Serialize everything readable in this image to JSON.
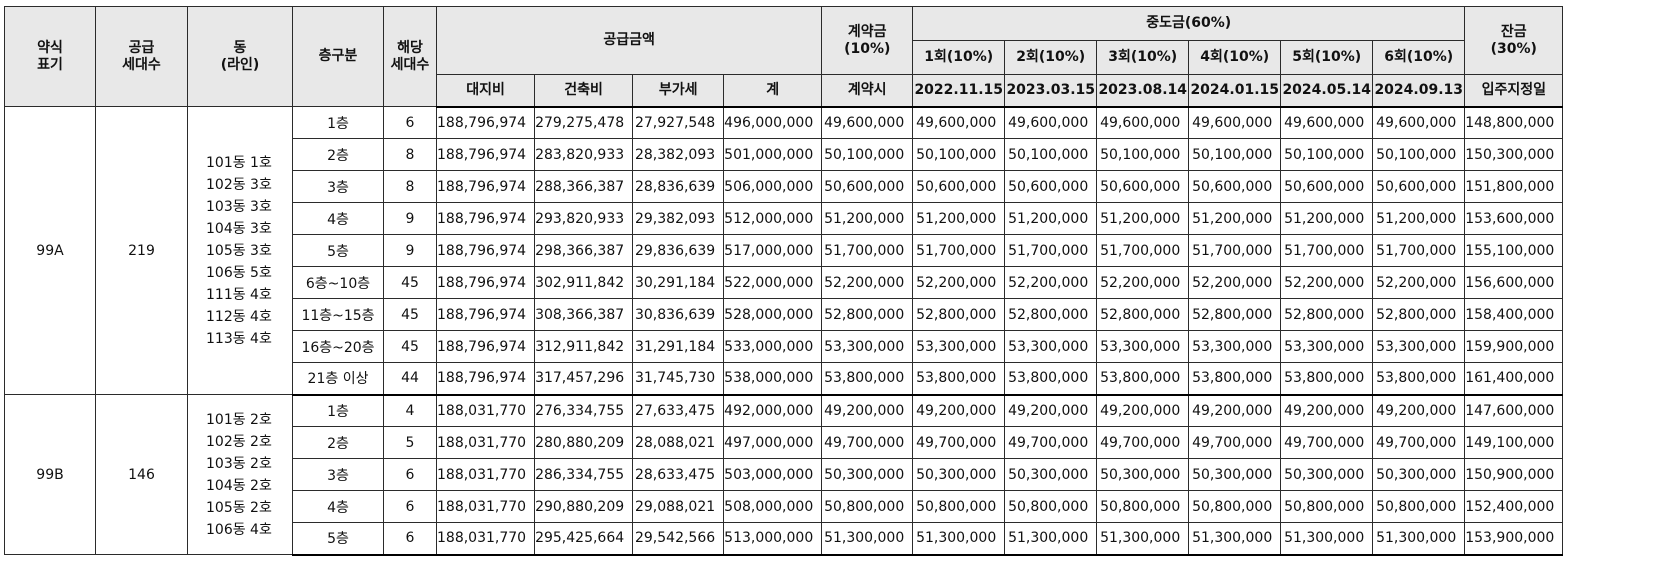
{
  "header": {
    "code": "약식\n표기",
    "supply_units": "공급\n세대수",
    "building": "동\n(라인)",
    "floor_type": "층구분",
    "units": "해당\n세대수",
    "supply_amount": "공급금액",
    "land": "대지비",
    "construction": "건축비",
    "vat": "부가세",
    "total": "계",
    "deposit": "계약금\n(10%)",
    "deposit_when": "계약시",
    "interim": "중도금(60%)",
    "interim_installments": [
      {
        "label": "1회(10%)",
        "date": "2022.11.15"
      },
      {
        "label": "2회(10%)",
        "date": "2023.03.15"
      },
      {
        "label": "3회(10%)",
        "date": "2023.08.14"
      },
      {
        "label": "4회(10%)",
        "date": "2024.01.15"
      },
      {
        "label": "5회(10%)",
        "date": "2024.05.14"
      },
      {
        "label": "6회(10%)",
        "date": "2024.09.13"
      }
    ],
    "balance": "잔금\n(30%)",
    "balance_when": "입주지정일"
  },
  "groups": [
    {
      "code": "99A",
      "supply_units": "219",
      "buildings": [
        "101동 1호",
        "102동 3호",
        "103동 3호",
        "104동 3호",
        "105동 3호",
        "106동 5호",
        "111동 4호",
        "112동 4호",
        "113동 4호"
      ],
      "rows": [
        {
          "floor": "1층",
          "units": "6",
          "land": "188,796,974",
          "construction": "279,275,478",
          "vat": "27,927,548",
          "total": "496,000,000",
          "deposit": "49,600,000",
          "interim": [
            "49,600,000",
            "49,600,000",
            "49,600,000",
            "49,600,000",
            "49,600,000",
            "49,600,000"
          ],
          "balance": "148,800,000"
        },
        {
          "floor": "2층",
          "units": "8",
          "land": "188,796,974",
          "construction": "283,820,933",
          "vat": "28,382,093",
          "total": "501,000,000",
          "deposit": "50,100,000",
          "interim": [
            "50,100,000",
            "50,100,000",
            "50,100,000",
            "50,100,000",
            "50,100,000",
            "50,100,000"
          ],
          "balance": "150,300,000"
        },
        {
          "floor": "3층",
          "units": "8",
          "land": "188,796,974",
          "construction": "288,366,387",
          "vat": "28,836,639",
          "total": "506,000,000",
          "deposit": "50,600,000",
          "interim": [
            "50,600,000",
            "50,600,000",
            "50,600,000",
            "50,600,000",
            "50,600,000",
            "50,600,000"
          ],
          "balance": "151,800,000"
        },
        {
          "floor": "4층",
          "units": "9",
          "land": "188,796,974",
          "construction": "293,820,933",
          "vat": "29,382,093",
          "total": "512,000,000",
          "deposit": "51,200,000",
          "interim": [
            "51,200,000",
            "51,200,000",
            "51,200,000",
            "51,200,000",
            "51,200,000",
            "51,200,000"
          ],
          "balance": "153,600,000"
        },
        {
          "floor": "5층",
          "units": "9",
          "land": "188,796,974",
          "construction": "298,366,387",
          "vat": "29,836,639",
          "total": "517,000,000",
          "deposit": "51,700,000",
          "interim": [
            "51,700,000",
            "51,700,000",
            "51,700,000",
            "51,700,000",
            "51,700,000",
            "51,700,000"
          ],
          "balance": "155,100,000"
        },
        {
          "floor": "6층~10층",
          "units": "45",
          "land": "188,796,974",
          "construction": "302,911,842",
          "vat": "30,291,184",
          "total": "522,000,000",
          "deposit": "52,200,000",
          "interim": [
            "52,200,000",
            "52,200,000",
            "52,200,000",
            "52,200,000",
            "52,200,000",
            "52,200,000"
          ],
          "balance": "156,600,000"
        },
        {
          "floor": "11층~15층",
          "units": "45",
          "land": "188,796,974",
          "construction": "308,366,387",
          "vat": "30,836,639",
          "total": "528,000,000",
          "deposit": "52,800,000",
          "interim": [
            "52,800,000",
            "52,800,000",
            "52,800,000",
            "52,800,000",
            "52,800,000",
            "52,800,000"
          ],
          "balance": "158,400,000"
        },
        {
          "floor": "16층~20층",
          "units": "45",
          "land": "188,796,974",
          "construction": "312,911,842",
          "vat": "31,291,184",
          "total": "533,000,000",
          "deposit": "53,300,000",
          "interim": [
            "53,300,000",
            "53,300,000",
            "53,300,000",
            "53,300,000",
            "53,300,000",
            "53,300,000"
          ],
          "balance": "159,900,000"
        },
        {
          "floor": "21층 이상",
          "units": "44",
          "land": "188,796,974",
          "construction": "317,457,296",
          "vat": "31,745,730",
          "total": "538,000,000",
          "deposit": "53,800,000",
          "interim": [
            "53,800,000",
            "53,800,000",
            "53,800,000",
            "53,800,000",
            "53,800,000",
            "53,800,000"
          ],
          "balance": "161,400,000"
        }
      ]
    },
    {
      "code": "99B",
      "supply_units": "146",
      "buildings": [
        "101동 2호",
        "102동 2호",
        "103동 2호",
        "104동 2호",
        "105동 2호",
        "106동 4호"
      ],
      "rows": [
        {
          "floor": "1층",
          "units": "4",
          "land": "188,031,770",
          "construction": "276,334,755",
          "vat": "27,633,475",
          "total": "492,000,000",
          "deposit": "49,200,000",
          "interim": [
            "49,200,000",
            "49,200,000",
            "49,200,000",
            "49,200,000",
            "49,200,000",
            "49,200,000"
          ],
          "balance": "147,600,000"
        },
        {
          "floor": "2층",
          "units": "5",
          "land": "188,031,770",
          "construction": "280,880,209",
          "vat": "28,088,021",
          "total": "497,000,000",
          "deposit": "49,700,000",
          "interim": [
            "49,700,000",
            "49,700,000",
            "49,700,000",
            "49,700,000",
            "49,700,000",
            "49,700,000"
          ],
          "balance": "149,100,000"
        },
        {
          "floor": "3층",
          "units": "6",
          "land": "188,031,770",
          "construction": "286,334,755",
          "vat": "28,633,475",
          "total": "503,000,000",
          "deposit": "50,300,000",
          "interim": [
            "50,300,000",
            "50,300,000",
            "50,300,000",
            "50,300,000",
            "50,300,000",
            "50,300,000"
          ],
          "balance": "150,900,000"
        },
        {
          "floor": "4층",
          "units": "6",
          "land": "188,031,770",
          "construction": "290,880,209",
          "vat": "29,088,021",
          "total": "508,000,000",
          "deposit": "50,800,000",
          "interim": [
            "50,800,000",
            "50,800,000",
            "50,800,000",
            "50,800,000",
            "50,800,000",
            "50,800,000"
          ],
          "balance": "152,400,000"
        },
        {
          "floor": "5층",
          "units": "6",
          "land": "188,031,770",
          "construction": "295,425,664",
          "vat": "29,542,566",
          "total": "513,000,000",
          "deposit": "51,300,000",
          "interim": [
            "51,300,000",
            "51,300,000",
            "51,300,000",
            "51,300,000",
            "51,300,000",
            "51,300,000"
          ],
          "balance": "153,900,000"
        }
      ]
    }
  ]
}
